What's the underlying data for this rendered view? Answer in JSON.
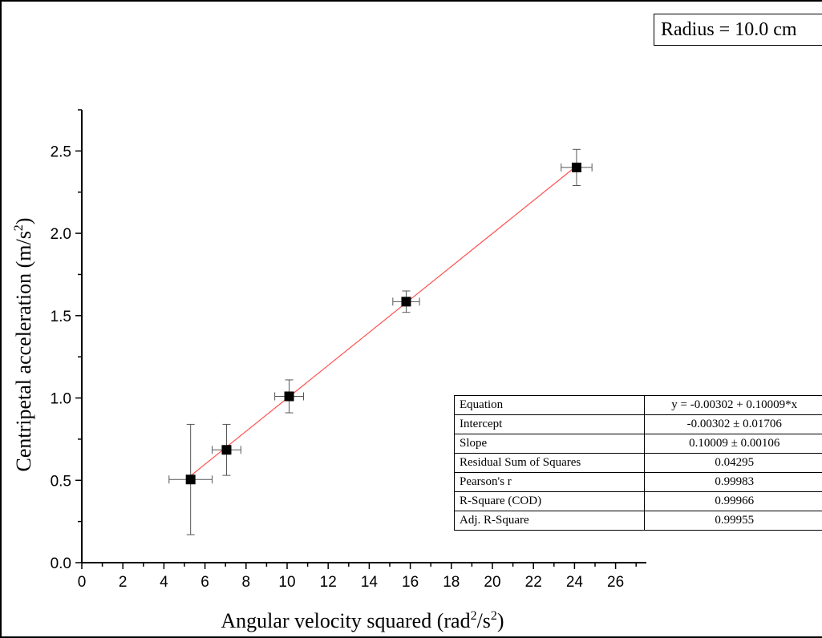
{
  "legend_box": {
    "text": "Radius = 10.0 cm"
  },
  "axes": {
    "xlabel_prefix": "Angular velocity squared (rad",
    "xlabel_sup1": "2",
    "xlabel_mid": "/s",
    "xlabel_sup2": "2",
    "xlabel_suffix": ")",
    "ylabel_prefix": "Centripetal acceleration (m/s",
    "ylabel_sup": "2",
    "ylabel_suffix": ")"
  },
  "fit_table": [
    {
      "label": "Equation",
      "value": "y = -0.00302 + 0.10009*x"
    },
    {
      "label": "Intercept",
      "value": "-0.00302 ± 0.01706"
    },
    {
      "label": "Slope",
      "value": "0.10009 ± 0.00106"
    },
    {
      "label": "Residual Sum of Squares",
      "value": "0.04295"
    },
    {
      "label": "Pearson's r",
      "value": "0.99983"
    },
    {
      "label": "R-Square (COD)",
      "value": "0.99966"
    },
    {
      "label": "Adj. R-Square",
      "value": "0.99955"
    }
  ],
  "chart_data": {
    "type": "scatter",
    "title": "",
    "xlabel": "Angular velocity squared (rad²/s²)",
    "ylabel": "Centripetal acceleration (m/s²)",
    "xlim": [
      0,
      27.5
    ],
    "ylim": [
      0,
      2.75
    ],
    "xticks": [
      "0",
      "2",
      "4",
      "6",
      "8",
      "10",
      "12",
      "14",
      "16",
      "18",
      "20",
      "22",
      "24",
      "26"
    ],
    "yticks": [
      "0.0",
      "0.5",
      "1.0",
      "1.5",
      "2.0",
      "2.5"
    ],
    "grid": false,
    "series": [
      {
        "points": [
          {
            "x": 5.3,
            "y": 0.505,
            "xerr": 1.05,
            "yerr": 0.335
          },
          {
            "x": 7.05,
            "y": 0.685,
            "xerr": 0.7,
            "yerr": 0.155
          },
          {
            "x": 10.1,
            "y": 1.01,
            "xerr": 0.7,
            "yerr": 0.1
          },
          {
            "x": 15.8,
            "y": 1.585,
            "xerr": 0.65,
            "yerr": 0.065
          },
          {
            "x": 24.1,
            "y": 2.4,
            "xerr": 0.75,
            "yerr": 0.11
          }
        ],
        "marker": "square",
        "color": "#000000",
        "errorbar_color": "#555555"
      }
    ],
    "fit_line": {
      "intercept": -0.00302,
      "slope": 0.10009,
      "x_range": [
        5.3,
        24.1
      ],
      "color": "#ff5050"
    }
  }
}
